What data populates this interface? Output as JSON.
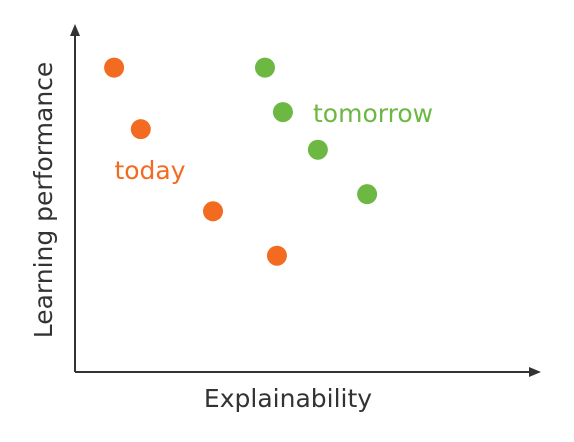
{
  "chart_data": {
    "type": "scatter",
    "x_label": "Explainability",
    "y_label": "Learning performance",
    "xlim": [
      0,
      100
    ],
    "ylim": [
      0,
      100
    ],
    "series": [
      {
        "name": "today",
        "color": "#f26b21",
        "x": [
          8.5,
          14.3,
          30,
          43.9
        ],
        "values": [
          89,
          71,
          47,
          34
        ]
      },
      {
        "name": "tomorrow",
        "color": "#6cb843",
        "x": [
          41.3,
          45.2,
          52.8,
          63.5
        ],
        "values": [
          89,
          76,
          65,
          52
        ]
      }
    ]
  }
}
